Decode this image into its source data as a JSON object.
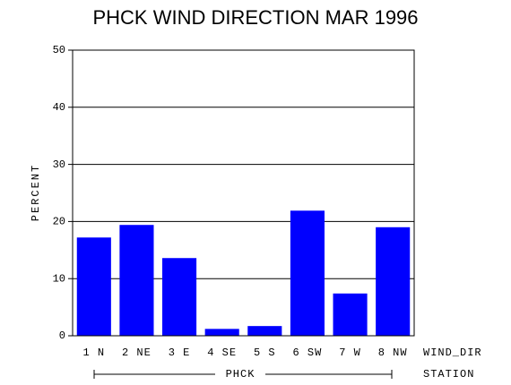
{
  "chart_data": {
    "type": "bar",
    "title": "PHCK WIND DIRECTION MAR 1996",
    "y_label": "PERCENT",
    "x_label": "WIND_DIR",
    "group": "PHCK",
    "group_label": "STATION",
    "categories": [
      "1 N",
      "2 NE",
      "3 E",
      "4 SE",
      "5 S",
      "6 SW",
      "7 W",
      "8 NW"
    ],
    "values": [
      17.2,
      19.4,
      13.6,
      1.2,
      1.7,
      21.9,
      7.4,
      19.0
    ],
    "color": "#0000ff",
    "ylim": [
      0,
      50
    ],
    "yticks": [
      0,
      10,
      20,
      30,
      40,
      50
    ],
    "grid": true
  }
}
